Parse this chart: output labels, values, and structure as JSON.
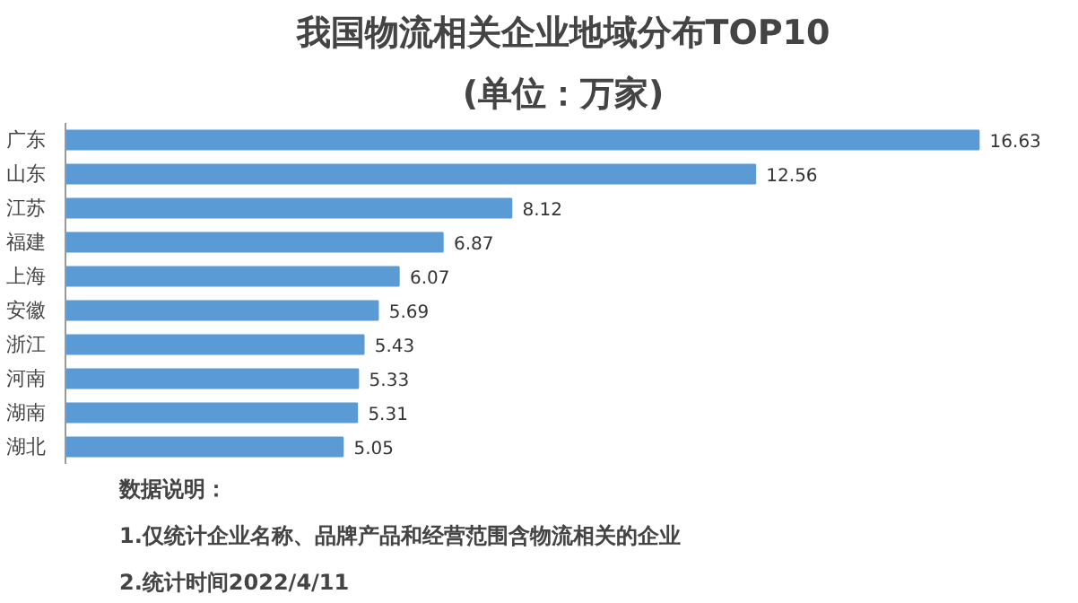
{
  "chart_data": {
    "type": "bar",
    "orientation": "horizontal",
    "title": "我国物流相关企业地域分布TOP10",
    "subtitle": "(单位：万家)",
    "categories": [
      "广东",
      "山东",
      "江苏",
      "福建",
      "上海",
      "安徽",
      "浙江",
      "河南",
      "湖南",
      "湖北"
    ],
    "values": [
      16.63,
      12.56,
      8.12,
      6.87,
      6.07,
      5.69,
      5.43,
      5.33,
      5.31,
      5.05
    ],
    "color": "#5b9bd5",
    "data_labels": true,
    "grid": false,
    "annotations": [
      "数据说明：",
      "1.仅统计企业名称、品牌产品和经营范围含物流相关的企业",
      "2.统计时间2022/4/11"
    ]
  }
}
